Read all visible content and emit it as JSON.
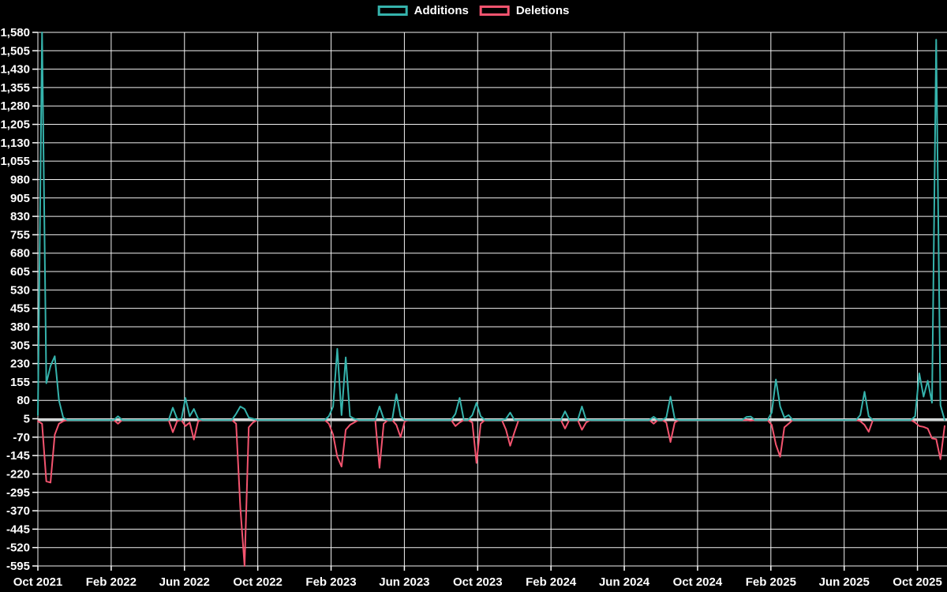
{
  "page": {
    "background_color": "#000000",
    "grid_color": "#f2f2f2",
    "zero_line_color": "#ced3d3",
    "text_color": "#ffffff"
  },
  "legend": {
    "items": [
      {
        "label": "Additions",
        "color": "#35b3ac"
      },
      {
        "label": "Deletions",
        "color": "#f4546f"
      }
    ]
  },
  "chart_data": {
    "type": "line",
    "title": "",
    "xlabel": "",
    "ylabel": "",
    "grid": true,
    "legend_position": "top-center",
    "x_unit": "week",
    "weeks_total": 216,
    "x_tick_labels": [
      "Oct 2021",
      "Feb 2022",
      "Jun 2022",
      "Oct 2022",
      "Feb 2023",
      "Jun 2023",
      "Oct 2023",
      "Feb 2024",
      "Jun 2024",
      "Oct 2024",
      "Feb 2025",
      "Jun 2025",
      "Oct 2025"
    ],
    "x_weeks_per_tick": 17.38,
    "y_tick_labels": [
      "1,580",
      "1,505",
      "1,430",
      "1,355",
      "1,280",
      "1,205",
      "1,130",
      "1,055",
      "980",
      "905",
      "830",
      "755",
      "680",
      "605",
      "530",
      "455",
      "380",
      "305",
      "230",
      "155",
      "80",
      "5",
      "-70",
      "-145",
      "-220",
      "-295",
      "-370",
      "-445",
      "-520",
      "-595"
    ],
    "ylim": [
      -595,
      1580
    ],
    "y_step": 75,
    "series": [
      {
        "name": "Additions",
        "color": "#35b3ac",
        "default_value": 0,
        "points": {
          "0": 20,
          "1": 1580,
          "2": 150,
          "3": 220,
          "4": 260,
          "5": 80,
          "6": 10,
          "19": 15,
          "32": 50,
          "33": 5,
          "35": 90,
          "36": 15,
          "37": 45,
          "38": 5,
          "47": 25,
          "48": 55,
          "49": 45,
          "50": 10,
          "51": 5,
          "69": 15,
          "70": 55,
          "71": 290,
          "72": 20,
          "73": 255,
          "74": 15,
          "75": 5,
          "81": 55,
          "82": 5,
          "85": 105,
          "86": 15,
          "99": 25,
          "100": 90,
          "103": 20,
          "104": 70,
          "105": 15,
          "111": 5,
          "112": 30,
          "125": 35,
          "129": 55,
          "146": 13,
          "149": 10,
          "150": 95,
          "151": 5,
          "168": 12,
          "169": 14,
          "174": 30,
          "175": 165,
          "176": 55,
          "177": 10,
          "178": 20,
          "195": 20,
          "196": 115,
          "197": 15,
          "208": 15,
          "209": 190,
          "210": 95,
          "211": 160,
          "212": 70,
          "213": 1550,
          "214": 60,
          "215": 0
        }
      },
      {
        "name": "Deletions",
        "color": "#f4546f",
        "default_value": 0,
        "points": {
          "0": -5,
          "1": -15,
          "2": -250,
          "3": -255,
          "4": -60,
          "5": -15,
          "6": -5,
          "19": -15,
          "32": -50,
          "33": -5,
          "35": -25,
          "36": -10,
          "37": -80,
          "38": -5,
          "47": -15,
          "48": -355,
          "49": -595,
          "50": -30,
          "51": -10,
          "69": -15,
          "70": -60,
          "71": -150,
          "72": -190,
          "73": -40,
          "74": -20,
          "75": -10,
          "81": -195,
          "82": -15,
          "85": -20,
          "86": -70,
          "87": -5,
          "99": -25,
          "100": -10,
          "103": -10,
          "104": -175,
          "105": -15,
          "111": -40,
          "112": -105,
          "113": -50,
          "125": -35,
          "129": -40,
          "130": -10,
          "146": -15,
          "149": -10,
          "150": -90,
          "151": -10,
          "169": -3,
          "174": -20,
          "175": -100,
          "176": -150,
          "177": -30,
          "178": -15,
          "195": -5,
          "196": -20,
          "197": -48,
          "208": -10,
          "209": -25,
          "210": -28,
          "211": -35,
          "212": -75,
          "213": -78,
          "214": -160,
          "215": -25
        }
      }
    ]
  }
}
